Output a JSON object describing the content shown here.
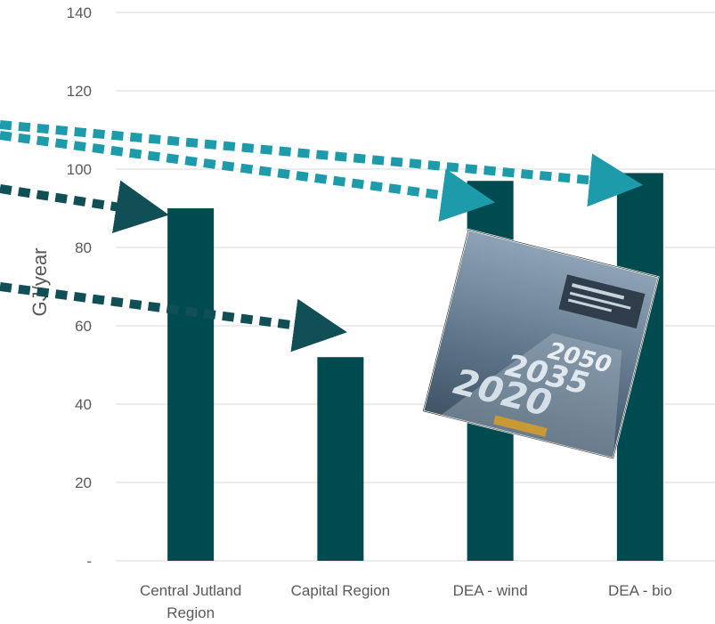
{
  "chart_data": {
    "type": "bar",
    "categories": [
      "Central Jutland Region",
      "Capital Region",
      "DEA - wind",
      "DEA - bio"
    ],
    "category_lines": [
      [
        "Central Jutland",
        "Region"
      ],
      [
        "Capital Region"
      ],
      [
        "DEA - wind"
      ],
      [
        "DEA - bio"
      ]
    ],
    "values": [
      90,
      52,
      97,
      99
    ],
    "ylabel": "GJ/year",
    "ylim": [
      0,
      140
    ],
    "yticks": [
      0,
      20,
      40,
      60,
      80,
      100,
      120,
      140
    ],
    "ytick_labels": [
      "-",
      "20",
      "40",
      "60",
      "80",
      "100",
      "120",
      "140"
    ],
    "grid": true,
    "legend": "none"
  },
  "colors": {
    "bar": "#004b50",
    "arrow_dark": "#0f4f55",
    "arrow_teal": "#1d9bab",
    "grid": "#d9d9d9"
  },
  "cover": {
    "numbers": [
      "2050",
      "2035",
      "2020"
    ]
  }
}
